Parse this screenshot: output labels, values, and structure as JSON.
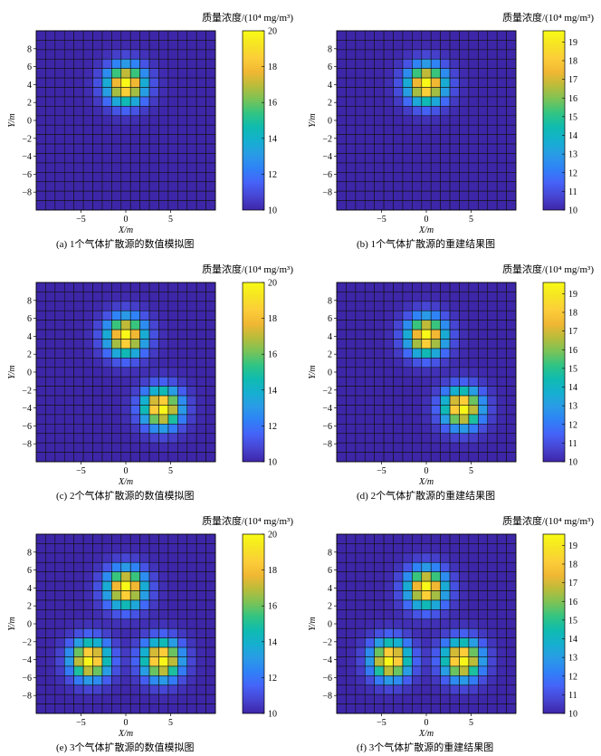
{
  "colorbar_title": "质量浓度/(10⁴ mg/m³)",
  "x_axis_label": "X/m",
  "y_axis_label": "Y/m",
  "colormap": [
    "#3e26a8",
    "#4745d3",
    "#4563f8",
    "#2f81f7",
    "#2a9be6",
    "#15afd0",
    "#0fbbb0",
    "#30c484",
    "#79c358",
    "#b8bc3a",
    "#f0b733",
    "#fccd39",
    "#f6e424",
    "#f9fb15"
  ],
  "chart_data": [
    {
      "type": "heatmap",
      "caption": "(a) 1个气体扩散源的数值模拟图",
      "xlabel": "X/m",
      "ylabel": "Y/m",
      "xlim": [
        -10,
        10
      ],
      "ylim": [
        -10,
        10
      ],
      "xticks": [
        -5,
        0,
        5
      ],
      "yticks": [
        -8,
        -6,
        -4,
        -2,
        0,
        2,
        4,
        6,
        8
      ],
      "grid": true,
      "colorbar": {
        "title": "质量浓度/(10⁴ mg/m³)",
        "range": [
          10,
          20
        ],
        "ticks": [
          10,
          12,
          14,
          16,
          18,
          20
        ]
      },
      "sources": [
        {
          "x": 0,
          "y": 4,
          "peak": 20
        }
      ],
      "background": 10,
      "spread_sigma_m": 1.5
    },
    {
      "type": "heatmap",
      "caption": "(b) 1个气体扩散源的重建结果图",
      "xlabel": "X/m",
      "ylabel": "Y/m",
      "xlim": [
        -10,
        10
      ],
      "ylim": [
        -10,
        10
      ],
      "xticks": [
        -5,
        0,
        5
      ],
      "yticks": [
        -8,
        -6,
        -4,
        -2,
        0,
        2,
        4,
        6,
        8
      ],
      "grid": true,
      "colorbar": {
        "title": "质量浓度/(10⁴ mg/m³)",
        "range": [
          10,
          19.6
        ],
        "ticks": [
          10,
          11,
          12,
          13,
          14,
          15,
          16,
          17,
          18,
          19
        ]
      },
      "sources": [
        {
          "x": 0,
          "y": 4,
          "peak": 19.6
        }
      ],
      "background": 10,
      "spread_sigma_m": 1.5
    },
    {
      "type": "heatmap",
      "caption": "(c) 2个气体扩散源的数值模拟图",
      "xlabel": "X/m",
      "ylabel": "Y/m",
      "xlim": [
        -10,
        10
      ],
      "ylim": [
        -10,
        10
      ],
      "xticks": [
        -5,
        0,
        5
      ],
      "yticks": [
        -8,
        -6,
        -4,
        -2,
        0,
        2,
        4,
        6,
        8
      ],
      "grid": true,
      "colorbar": {
        "title": "质量浓度/(10⁴ mg/m³)",
        "range": [
          10,
          20
        ],
        "ticks": [
          10,
          12,
          14,
          16,
          18,
          20
        ]
      },
      "sources": [
        {
          "x": 0,
          "y": 4,
          "peak": 20
        },
        {
          "x": 4,
          "y": -4,
          "peak": 20
        }
      ],
      "background": 10,
      "spread_sigma_m": 1.5
    },
    {
      "type": "heatmap",
      "caption": "(d) 2个气体扩散源的重建结果图",
      "xlabel": "X/m",
      "ylabel": "Y/m",
      "xlim": [
        -10,
        10
      ],
      "ylim": [
        -10,
        10
      ],
      "xticks": [
        -5,
        0,
        5
      ],
      "yticks": [
        -8,
        -6,
        -4,
        -2,
        0,
        2,
        4,
        6,
        8
      ],
      "grid": true,
      "colorbar": {
        "title": "质量浓度/(10⁴ mg/m³)",
        "range": [
          10,
          19.6
        ],
        "ticks": [
          10,
          11,
          12,
          13,
          14,
          15,
          16,
          17,
          18,
          19
        ]
      },
      "sources": [
        {
          "x": 0,
          "y": 4,
          "peak": 19.6
        },
        {
          "x": 4,
          "y": -4,
          "peak": 19.6
        }
      ],
      "background": 10,
      "spread_sigma_m": 1.5
    },
    {
      "type": "heatmap",
      "caption": "(e) 3个气体扩散源的数值模拟图",
      "xlabel": "X/m",
      "ylabel": "Y/m",
      "xlim": [
        -10,
        10
      ],
      "ylim": [
        -10,
        10
      ],
      "xticks": [
        -5,
        0,
        5
      ],
      "yticks": [
        -8,
        -6,
        -4,
        -2,
        0,
        2,
        4,
        6,
        8
      ],
      "grid": true,
      "colorbar": {
        "title": "质量浓度/(10⁴ mg/m³)",
        "range": [
          10,
          20
        ],
        "ticks": [
          10,
          12,
          14,
          16,
          18,
          20
        ]
      },
      "sources": [
        {
          "x": 0,
          "y": 4,
          "peak": 20
        },
        {
          "x": -4,
          "y": -4,
          "peak": 20
        },
        {
          "x": 4,
          "y": -4,
          "peak": 20
        }
      ],
      "background": 10,
      "spread_sigma_m": 1.5
    },
    {
      "type": "heatmap",
      "caption": "(f) 3个气体扩散源的重建结果图",
      "xlabel": "X/m",
      "ylabel": "Y/m",
      "xlim": [
        -10,
        10
      ],
      "ylim": [
        -10,
        10
      ],
      "xticks": [
        -5,
        0,
        5
      ],
      "yticks": [
        -8,
        -6,
        -4,
        -2,
        0,
        2,
        4,
        6,
        8
      ],
      "grid": true,
      "colorbar": {
        "title": "质量浓度/(10⁴ mg/m³)",
        "range": [
          10,
          19.6
        ],
        "ticks": [
          10,
          11,
          12,
          13,
          14,
          15,
          16,
          17,
          18,
          19
        ]
      },
      "sources": [
        {
          "x": 0,
          "y": 4,
          "peak": 19.6
        },
        {
          "x": -4,
          "y": -4,
          "peak": 19.6
        },
        {
          "x": 4,
          "y": -4,
          "peak": 19.6
        }
      ],
      "background": 10,
      "spread_sigma_m": 1.5
    }
  ]
}
